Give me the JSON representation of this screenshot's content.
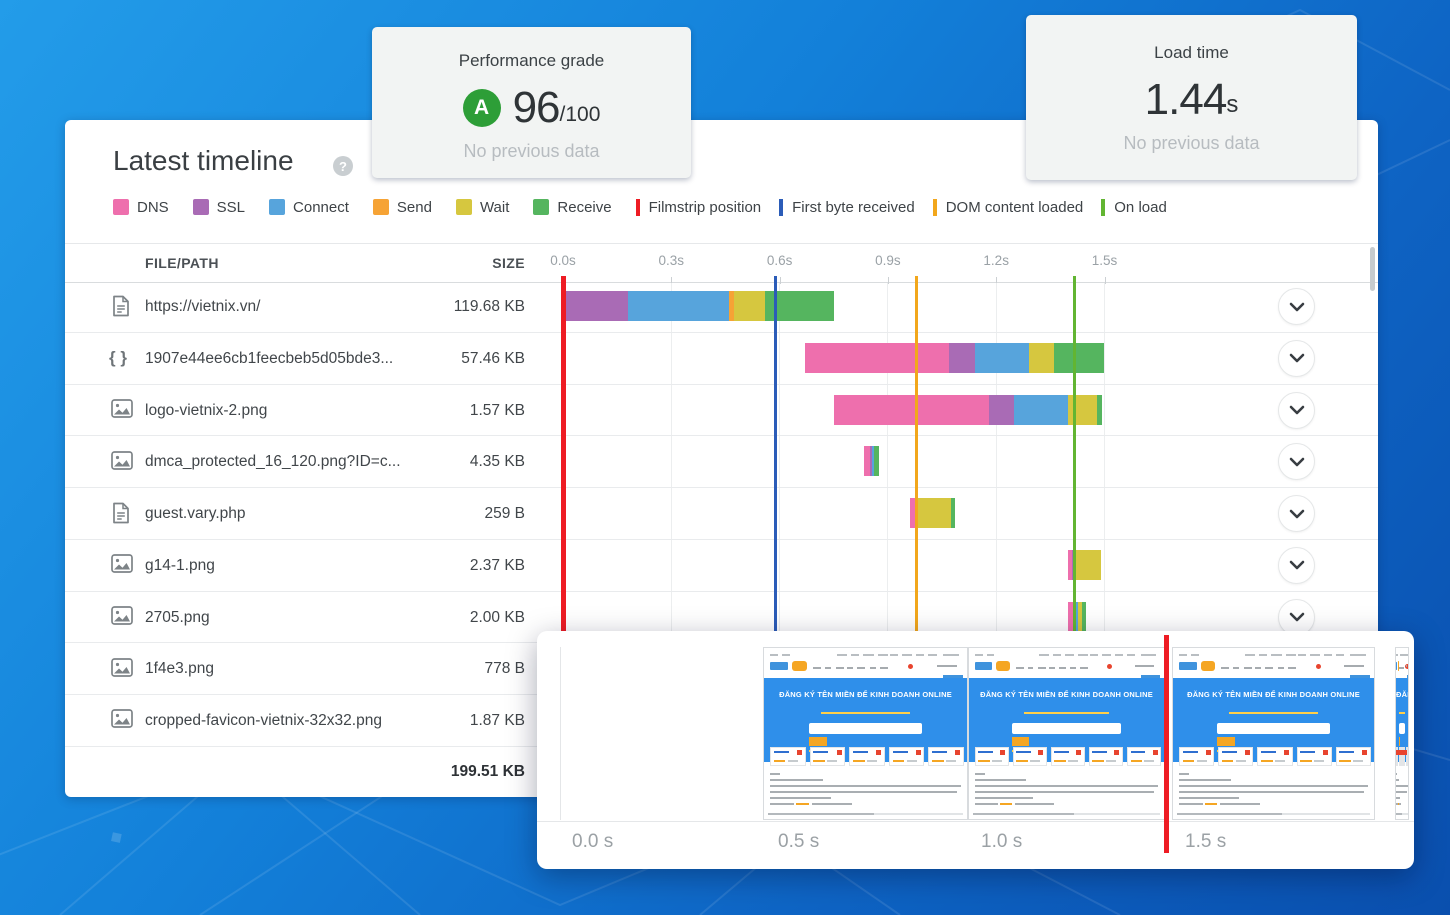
{
  "cards": {
    "performance": {
      "title": "Performance grade",
      "grade": "A",
      "score": "96",
      "score_suffix": "/100",
      "note": "No previous data"
    },
    "load_time": {
      "title": "Load time",
      "value": "1.44",
      "unit": "s",
      "note": "No previous data"
    }
  },
  "colors": {
    "phases": {
      "dns": "#ee6fad",
      "ssl": "#a96bb5",
      "connect": "#57a4dc",
      "send": "#f6a335",
      "wait": "#d6c73f",
      "receive": "#55b55f"
    },
    "markers": {
      "filmstrip-position": "#ee1c24",
      "first-byte-received": "#2b5cb8",
      "dom-content-loaded": "#f2a71c",
      "on-load": "#62b532"
    },
    "grade_badge": "#2d9e37",
    "background_top": "#239ce9",
    "background_bottom": "#0a4fae"
  },
  "timeline": {
    "title": "Latest timeline",
    "help_icon": "?",
    "legend_phases": [
      {
        "phase": "dns",
        "label": "DNS"
      },
      {
        "phase": "ssl",
        "label": "SSL"
      },
      {
        "phase": "connect",
        "label": "Connect"
      },
      {
        "phase": "send",
        "label": "Send"
      },
      {
        "phase": "wait",
        "label": "Wait"
      },
      {
        "phase": "receive",
        "label": "Receive"
      }
    ],
    "legend_markers": [
      {
        "name": "filmstrip-position",
        "label": "Filmstrip position"
      },
      {
        "name": "first-byte-received",
        "label": "First byte received"
      },
      {
        "name": "dom-content-loaded",
        "label": "DOM content loaded"
      },
      {
        "name": "on-load",
        "label": "On load"
      }
    ],
    "columns": {
      "file": "FILE/PATH",
      "size": "SIZE"
    },
    "axis_ticks": [
      "0.0s",
      "0.3s",
      "0.6s",
      "0.9s",
      "1.2s",
      "1.5s"
    ],
    "markers": [
      {
        "name": "filmstrip-position",
        "t": 0.0
      },
      {
        "name": "first-byte-received",
        "t": 0.588
      },
      {
        "name": "dom-content-loaded",
        "t": 0.978
      },
      {
        "name": "on-load",
        "t": 1.418
      }
    ],
    "rows": [
      {
        "icon": "doc",
        "file": "https://vietnix.vn/",
        "size": "119.68 KB",
        "segments": [
          [
            "ssl",
            0.0,
            0.18
          ],
          [
            "connect",
            0.18,
            0.46
          ],
          [
            "send",
            0.46,
            0.475
          ],
          [
            "wait",
            0.475,
            0.56
          ],
          [
            "receive",
            0.56,
            0.75
          ]
        ]
      },
      {
        "icon": "braces",
        "file": "1907e44ee6cb1feecbeb5d05bde3...",
        "size": "57.46 KB",
        "segments": [
          [
            "dns",
            0.67,
            1.07
          ],
          [
            "ssl",
            1.07,
            1.14
          ],
          [
            "connect",
            1.14,
            1.29
          ],
          [
            "wait",
            1.29,
            1.36
          ],
          [
            "receive",
            1.36,
            1.5
          ]
        ]
      },
      {
        "icon": "image",
        "file": "logo-vietnix-2.png",
        "size": "1.57 KB",
        "segments": [
          [
            "dns",
            0.75,
            1.18
          ],
          [
            "ssl",
            1.18,
            1.25
          ],
          [
            "connect",
            1.25,
            1.4
          ],
          [
            "wait",
            1.4,
            1.48
          ],
          [
            "receive",
            1.48,
            1.493
          ]
        ]
      },
      {
        "icon": "image",
        "file": "dmca_protected_16_120.png?ID=c...",
        "size": "4.35 KB",
        "segments": [
          [
            "dns",
            0.835,
            0.85
          ],
          [
            "ssl",
            0.85,
            0.856
          ],
          [
            "connect",
            0.856,
            0.862
          ],
          [
            "receive",
            0.862,
            0.875
          ]
        ]
      },
      {
        "icon": "doc",
        "file": "guest.vary.php",
        "size": "259 B",
        "segments": [
          [
            "dns",
            0.96,
            0.98
          ],
          [
            "wait",
            0.98,
            1.075
          ],
          [
            "receive",
            1.075,
            1.085
          ]
        ]
      },
      {
        "icon": "image",
        "file": "g14-1.png",
        "size": "2.37 KB",
        "segments": [
          [
            "dns",
            1.4,
            1.409
          ],
          [
            "ssl",
            1.409,
            1.417
          ],
          [
            "wait",
            1.417,
            1.49
          ]
        ]
      },
      {
        "icon": "image",
        "file": "2705.png",
        "size": "2.00 KB",
        "segments": [
          [
            "dns",
            1.4,
            1.414
          ],
          [
            "ssl",
            1.414,
            1.419
          ],
          [
            "connect",
            1.419,
            1.427
          ],
          [
            "wait",
            1.427,
            1.437
          ],
          [
            "receive",
            1.437,
            1.45
          ]
        ]
      },
      {
        "icon": "image",
        "file": "1f4e3.png",
        "size": "778 B",
        "segments": []
      },
      {
        "icon": "image",
        "file": "cropped-favicon-vietnix-32x32.png",
        "size": "1.87 KB",
        "segments": []
      }
    ],
    "total_size": "199.51 KB"
  },
  "filmstrip": {
    "labels": [
      "0.0 s",
      "0.5 s",
      "1.0 s",
      "1.5 s"
    ],
    "frames": [
      "blank",
      "page",
      "page",
      "page",
      "sliver"
    ],
    "page": {
      "hero_title": "ĐĂNG KÝ TÊN MIỀN ĐỂ KINH DOANH ONLINE"
    }
  }
}
